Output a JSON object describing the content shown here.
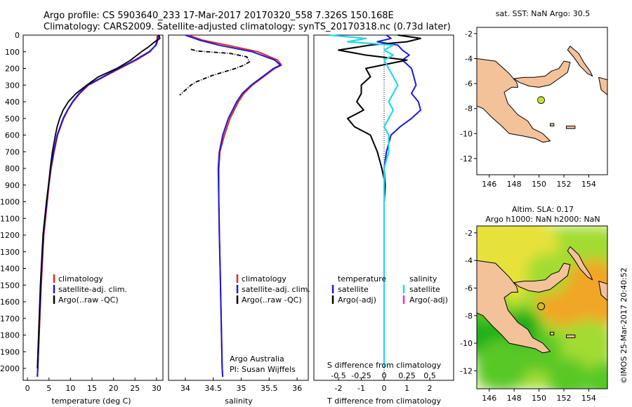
{
  "title": {
    "line1": "Argo profile: CS 5903640_233 17-Mar-2017 20170320_558 7.326S 150.168E",
    "line2": "Climatology: CARS2009. Satellite-adjusted climatology: synTS_20170318.nc (0.73d later)"
  },
  "colors": {
    "climatology": "#e8281e",
    "satellite": "#1a1ad8",
    "argo": "#000000",
    "sal_satellite": "#22d8e8",
    "sal_argo": "#d838d8",
    "land": "#f3c299",
    "marker": "#bde23a"
  },
  "chart_data": [
    {
      "type": "line",
      "id": "temperature-profile",
      "xlabel": "temperature (deg C)",
      "ylabel": "",
      "xlim": [
        -1,
        31.5
      ],
      "ylim": [
        2070,
        0
      ],
      "xticks": [
        "0",
        "5",
        "10",
        "15",
        "20",
        "25",
        "30"
      ],
      "yticks": [
        "0",
        "100",
        "200",
        "300",
        "400",
        "500",
        "600",
        "700",
        "800",
        "900",
        "1000",
        "1100",
        "1200",
        "1300",
        "1400",
        "1500",
        "1600",
        "1700",
        "1800",
        "1900",
        "2000"
      ],
      "legend": [
        "climatology",
        "satellite-adj. clim.",
        "Argo(..raw -QC)"
      ],
      "series": [
        {
          "name": "climatology",
          "depth": [
            0,
            30,
            60,
            100,
            150,
            200,
            250,
            300,
            350,
            400,
            450,
            500,
            550,
            600,
            700,
            800,
            900,
            1000,
            1200,
            1500,
            2000,
            2050
          ],
          "values": [
            30.2,
            30.1,
            29.8,
            28.5,
            25.3,
            21.5,
            17.8,
            14.2,
            12.2,
            10.6,
            9.4,
            8.4,
            7.7,
            7.0,
            6.2,
            5.5,
            5.0,
            4.6,
            3.8,
            3.2,
            2.4,
            2.3
          ]
        },
        {
          "name": "satellite-adj. clim.",
          "depth": [
            0,
            30,
            60,
            100,
            150,
            200,
            250,
            300,
            350,
            400,
            450,
            500,
            550,
            600,
            700,
            800,
            900,
            1000,
            1200,
            1500,
            2000,
            2050
          ],
          "values": [
            30.4,
            30.3,
            29.9,
            28.3,
            25.0,
            21.2,
            17.6,
            14.0,
            12.0,
            10.5,
            9.3,
            8.3,
            7.6,
            6.9,
            6.1,
            5.4,
            4.9,
            4.5,
            3.7,
            3.1,
            2.4,
            2.3
          ]
        },
        {
          "name": "Argo(..raw -QC)",
          "depth": [
            0,
            20,
            40,
            70,
            100,
            150,
            200,
            250,
            300,
            350,
            400,
            450,
            500,
            550,
            600,
            700,
            800,
            900,
            1000,
            1200,
            1500,
            2000
          ],
          "values": [
            30.6,
            30.8,
            29.6,
            28.2,
            26.5,
            24.0,
            20.8,
            16.5,
            13.8,
            11.3,
            9.5,
            8.3,
            7.5,
            6.9,
            6.5,
            5.8,
            5.3,
            4.9,
            4.4,
            3.6,
            3.0,
            2.3
          ]
        }
      ]
    },
    {
      "type": "line",
      "id": "salinity-profile",
      "xlabel": "salinity",
      "xlim": [
        33.7,
        36.2
      ],
      "ylim": [
        2070,
        0
      ],
      "xticks": [
        "34",
        "34.5",
        "35",
        "35.5",
        "36"
      ],
      "legend": [
        "climatology",
        "satellite-adj. clim.",
        "Argo(..raw -QC)"
      ],
      "annotations": [
        "Argo Australia",
        "PI: Susan Wijffels"
      ],
      "series": [
        {
          "name": "climatology",
          "depth": [
            0,
            30,
            60,
            100,
            150,
            180,
            200,
            250,
            300,
            350,
            400,
            500,
            600,
            700,
            800,
            1000,
            1200,
            1500,
            2000,
            2050
          ],
          "values": [
            34.05,
            34.3,
            34.75,
            35.3,
            35.65,
            35.72,
            35.6,
            35.4,
            35.2,
            35.05,
            34.95,
            34.8,
            34.7,
            34.62,
            34.6,
            34.6,
            34.61,
            34.63,
            34.66,
            34.67
          ]
        },
        {
          "name": "satellite-adj. clim.",
          "depth": [
            0,
            30,
            60,
            100,
            150,
            180,
            200,
            250,
            300,
            350,
            400,
            500,
            600,
            700,
            800,
            1000,
            1200,
            1500,
            2000,
            2050
          ],
          "values": [
            34.0,
            34.25,
            34.6,
            35.2,
            35.6,
            35.7,
            35.58,
            35.38,
            35.18,
            35.02,
            34.92,
            34.77,
            34.67,
            34.61,
            34.59,
            34.6,
            34.61,
            34.63,
            34.66,
            34.67
          ]
        },
        {
          "name": "Argo(..raw -QC)",
          "depth": [
            85,
            95,
            110,
            130,
            160,
            180,
            200,
            220,
            240,
            260,
            280,
            300,
            330,
            360
          ],
          "values": [
            34.1,
            34.2,
            34.8,
            35.1,
            35.15,
            35.05,
            34.9,
            34.7,
            34.5,
            34.35,
            34.2,
            34.1,
            34.0,
            33.9
          ]
        }
      ]
    },
    {
      "type": "line",
      "id": "difference-profile",
      "xlabel": "T difference from climatology",
      "xlabel_top": "S difference from climatology",
      "xlim": [
        -2.6,
        2.6
      ],
      "ylim": [
        2070,
        0
      ],
      "xticks": [
        "-2",
        "-1",
        "0",
        "1",
        "2"
      ],
      "s_xticks": [
        "-0.5",
        "-0.25",
        "0",
        "0.25",
        "0.5"
      ],
      "legend_headers": [
        "temperature",
        "salinity"
      ],
      "legend": [
        "satellite",
        "Argo(-adj)",
        "satellite",
        "Argo(-adj)"
      ],
      "series": [
        {
          "name": "temperature satellite",
          "depth": [
            0,
            20,
            40,
            60,
            90,
            120,
            150,
            200,
            250,
            300,
            350,
            400,
            450,
            500,
            550,
            600,
            700,
            800,
            900,
            1000,
            1500,
            2000
          ],
          "values": [
            0.1,
            0.3,
            -0.3,
            0.6,
            0.8,
            1.1,
            0.8,
            1.2,
            1.3,
            1.4,
            1.2,
            1.5,
            1.6,
            1.2,
            0.7,
            0.3,
            0.1,
            0.0,
            0.05,
            0.0,
            0.0,
            0.0
          ]
        },
        {
          "name": "temperature Argo(-adj)",
          "depth": [
            0,
            20,
            40,
            60,
            90,
            120,
            150,
            200,
            250,
            300,
            350,
            400,
            450,
            500,
            550,
            600,
            700,
            800,
            900,
            1000,
            1500,
            2000
          ],
          "values": [
            0.6,
            1.6,
            1.0,
            -0.6,
            -2.0,
            -0.8,
            1.0,
            -0.8,
            -0.6,
            -1.0,
            -1.0,
            -1.2,
            -0.9,
            -1.6,
            -1.3,
            -0.6,
            -0.3,
            -0.1,
            0.05,
            0.0,
            0.0,
            0.0
          ]
        },
        {
          "name": "salinity satellite",
          "depth": [
            0,
            20,
            40,
            60,
            90,
            120,
            150,
            200,
            250,
            300,
            350,
            400,
            450,
            500,
            550,
            600,
            700,
            800,
            900,
            1000,
            1500,
            2000
          ],
          "values": [
            -0.6,
            -0.2,
            -0.4,
            0.1,
            0.0,
            0.1,
            0.0,
            0.05,
            0.1,
            0.15,
            0.1,
            0.05,
            0.1,
            0.05,
            0.0,
            0.05,
            0.05,
            0.0,
            0.0,
            0.0,
            0.0,
            0.0
          ]
        }
      ]
    },
    {
      "type": "map",
      "id": "sst-map",
      "title": "sat. SST: NaN Argo: 30.5",
      "xlim": [
        145,
        155.5
      ],
      "ylim": [
        -13.3,
        -1.5
      ],
      "xticks": [
        "146",
        "148",
        "150",
        "152",
        "154"
      ],
      "yticks": [
        "-2",
        "-4",
        "-6",
        "-8",
        "-10",
        "-12"
      ],
      "point": {
        "lon": 150.168,
        "lat": -7.326
      }
    },
    {
      "type": "heatmap",
      "id": "sla-map",
      "title_line1": "Altim. SLA: 0.17",
      "title_line2": "Argo h1000: NaN h2000: NaN",
      "xlim": [
        145,
        155.5
      ],
      "ylim": [
        -13.3,
        -1.5
      ],
      "xticks": [
        "146",
        "148",
        "150",
        "152",
        "154"
      ],
      "yticks": [
        "-2",
        "-4",
        "-6",
        "-8",
        "-10",
        "-12"
      ],
      "point": {
        "lon": 150.168,
        "lat": -7.326
      },
      "colorscale": [
        "#1cae1c",
        "#58c828",
        "#a2dc32",
        "#e6e23a",
        "#f2a628"
      ]
    }
  ],
  "credit": "©IMOS 25-Mar-2017 20:40:52"
}
